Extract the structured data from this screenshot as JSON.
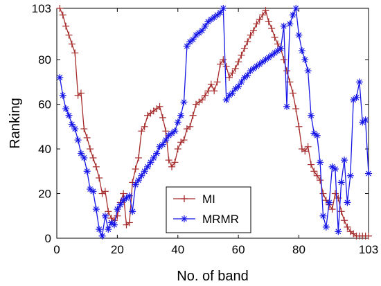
{
  "chart_data": {
    "type": "line",
    "xlabel": "No. of band",
    "ylabel": "Ranking",
    "xlim": [
      0,
      103
    ],
    "ylim": [
      0,
      103
    ],
    "xticks": [
      0,
      20,
      40,
      60,
      80,
      103
    ],
    "yticks": [
      0,
      20,
      40,
      60,
      80,
      103
    ],
    "grid": false,
    "legend_position": "lower-center",
    "series": [
      {
        "name": "MI",
        "color": "#a52a2a",
        "marker": "plus",
        "x": [
          1,
          2,
          3,
          4,
          5,
          6,
          7,
          8,
          9,
          10,
          11,
          12,
          13,
          14,
          15,
          16,
          17,
          18,
          19,
          20,
          21,
          22,
          23,
          24,
          25,
          26,
          27,
          28,
          29,
          30,
          31,
          32,
          33,
          34,
          35,
          36,
          37,
          38,
          39,
          40,
          41,
          42,
          43,
          44,
          45,
          46,
          47,
          48,
          49,
          50,
          51,
          52,
          53,
          54,
          55,
          56,
          57,
          58,
          59,
          60,
          61,
          62,
          63,
          64,
          65,
          66,
          67,
          68,
          69,
          70,
          71,
          72,
          73,
          74,
          75,
          76,
          77,
          78,
          79,
          80,
          81,
          82,
          83,
          84,
          85,
          86,
          87,
          88,
          89,
          90,
          91,
          92,
          93,
          94,
          95,
          96,
          97,
          98,
          99,
          100,
          101,
          102,
          103
        ],
        "y": [
          103,
          100,
          95,
          91,
          87,
          83,
          64,
          65,
          49,
          45,
          40,
          36,
          32,
          27,
          20,
          21,
          12,
          9,
          8,
          10,
          16,
          20,
          6,
          7,
          25,
          31,
          36,
          48,
          50,
          55,
          56,
          57,
          58,
          59,
          54,
          48,
          35,
          32,
          34,
          40,
          43,
          44,
          49,
          50,
          55,
          60,
          61,
          62,
          64,
          66,
          69,
          66,
          70,
          78,
          80,
          77,
          72,
          74,
          76,
          79,
          82,
          85,
          88,
          91,
          93,
          96,
          98,
          100,
          102,
          97,
          94,
          90,
          87,
          85,
          80,
          75,
          70,
          65,
          58,
          50,
          40,
          39,
          41,
          33,
          30,
          28,
          26,
          20,
          17,
          15,
          13,
          20,
          18,
          12,
          8,
          5,
          3,
          2,
          1,
          1,
          1,
          1,
          1
        ]
      },
      {
        "name": "MRMR",
        "color": "#1515e6",
        "marker": "star",
        "x": [
          1,
          2,
          3,
          4,
          5,
          6,
          7,
          8,
          9,
          10,
          11,
          12,
          13,
          14,
          15,
          16,
          17,
          18,
          19,
          20,
          21,
          22,
          23,
          24,
          25,
          26,
          27,
          28,
          29,
          30,
          31,
          32,
          33,
          34,
          35,
          36,
          37,
          38,
          39,
          40,
          41,
          42,
          43,
          44,
          45,
          46,
          47,
          48,
          49,
          50,
          51,
          52,
          53,
          54,
          55,
          56,
          57,
          58,
          59,
          60,
          61,
          62,
          63,
          64,
          65,
          66,
          67,
          68,
          69,
          70,
          71,
          72,
          73,
          74,
          75,
          76,
          77,
          78,
          79,
          80,
          81,
          82,
          83,
          84,
          85,
          86,
          87,
          88,
          89,
          90,
          91,
          92,
          93,
          94,
          95,
          96,
          97,
          98,
          99,
          100,
          101,
          102,
          103
        ],
        "y": [
          72,
          64,
          58,
          55,
          51,
          49,
          44,
          38,
          36,
          30,
          22,
          21,
          13,
          4,
          1,
          10,
          4,
          7,
          6,
          13,
          15,
          17,
          18,
          19,
          12,
          24,
          26,
          28,
          30,
          32,
          34,
          36,
          38,
          41,
          42,
          44,
          46,
          47,
          48,
          52,
          55,
          61,
          86,
          88,
          89,
          91,
          92,
          93,
          95,
          97,
          98,
          99,
          100,
          101,
          103,
          62,
          64,
          65,
          67,
          68,
          70,
          72,
          73,
          75,
          76,
          77,
          78,
          79,
          80,
          81,
          82,
          83,
          84,
          85,
          95,
          59,
          96,
          100,
          103,
          91,
          84,
          80,
          75,
          55,
          47,
          46,
          34,
          10,
          5,
          16,
          32,
          31,
          3,
          25,
          35,
          16,
          28,
          62,
          63,
          70,
          52,
          53,
          29
        ]
      }
    ]
  }
}
